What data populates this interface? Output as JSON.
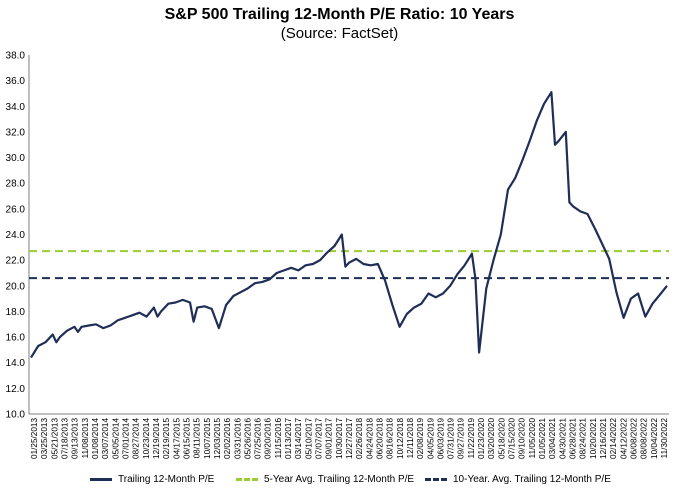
{
  "chart_data": {
    "type": "line",
    "title": "S&P 500 Trailing 12-Month P/E Ratio: 10 Years",
    "subtitle": "(Source: FactSet)",
    "xlabel": "",
    "ylabel": "",
    "ylim": [
      10.0,
      38.0
    ],
    "y_ticks": [
      "10.0",
      "12.0",
      "14.0",
      "16.0",
      "18.0",
      "20.0",
      "22.0",
      "24.0",
      "26.0",
      "28.0",
      "30.0",
      "32.0",
      "34.0",
      "36.0",
      "38.0"
    ],
    "grid": false,
    "legend_position": "bottom",
    "x_tick_labels": [
      "01/25/2013",
      "03/25/2013",
      "05/21/2013",
      "07/18/2013",
      "09/13/2013",
      "11/08/2013",
      "01/08/2014",
      "03/07/2014",
      "05/05/2014",
      "07/01/2014",
      "08/27/2014",
      "10/23/2014",
      "12/19/2014",
      "02/19/2015",
      "04/17/2015",
      "06/15/2015",
      "08/11/2015",
      "10/07/2015",
      "12/03/2015",
      "02/02/2016",
      "03/31/2016",
      "05/26/2016",
      "07/25/2016",
      "09/20/2016",
      "11/15/2016",
      "01/13/2017",
      "03/14/2017",
      "05/10/2017",
      "07/07/2017",
      "09/01/2017",
      "10/30/2017",
      "12/27/2017",
      "02/26/2018",
      "04/24/2018",
      "06/20/2018",
      "08/16/2018",
      "10/12/2018",
      "12/11/2018",
      "02/08/2019",
      "04/05/2019",
      "06/03/2019",
      "07/31/2019",
      "09/27/2019",
      "11/22/2019",
      "01/23/2020",
      "03/20/2020",
      "05/18/2020",
      "07/15/2020",
      "09/10/2020",
      "11/05/2020",
      "01/05/2021",
      "03/04/2021",
      "04/30/2021",
      "06/28/2021",
      "08/24/2021",
      "10/20/2021",
      "12/16/2021",
      "02/14/2022",
      "04/12/2022",
      "06/08/2022",
      "08/08/2022",
      "10/04/2022",
      "11/30/2022"
    ],
    "series": [
      {
        "name": "Trailing 12-Month P/E",
        "style": "solid",
        "color": "#1f2e57",
        "points": [
          [
            0,
            14.4
          ],
          [
            1,
            15.3
          ],
          [
            2,
            15.6
          ],
          [
            3,
            16.2
          ],
          [
            3.5,
            15.6
          ],
          [
            4,
            16.0
          ],
          [
            5,
            16.5
          ],
          [
            6,
            16.8
          ],
          [
            6.5,
            16.4
          ],
          [
            7,
            16.8
          ],
          [
            8,
            16.9
          ],
          [
            9,
            17.0
          ],
          [
            10,
            16.7
          ],
          [
            11,
            16.9
          ],
          [
            12,
            17.3
          ],
          [
            13,
            17.5
          ],
          [
            14,
            17.7
          ],
          [
            15,
            17.9
          ],
          [
            16,
            17.6
          ],
          [
            17,
            18.3
          ],
          [
            17.5,
            17.6
          ],
          [
            18,
            18.0
          ],
          [
            19,
            18.6
          ],
          [
            20,
            18.7
          ],
          [
            21,
            18.9
          ],
          [
            22,
            18.7
          ],
          [
            22.5,
            17.2
          ],
          [
            23,
            18.3
          ],
          [
            24,
            18.4
          ],
          [
            25,
            18.2
          ],
          [
            26,
            16.7
          ],
          [
            27,
            18.5
          ],
          [
            28,
            19.2
          ],
          [
            29,
            19.5
          ],
          [
            30,
            19.8
          ],
          [
            31,
            20.2
          ],
          [
            32,
            20.3
          ],
          [
            33,
            20.5
          ],
          [
            34,
            21.0
          ],
          [
            35,
            21.2
          ],
          [
            36,
            21.4
          ],
          [
            37,
            21.2
          ],
          [
            38,
            21.6
          ],
          [
            39,
            21.7
          ],
          [
            40,
            22.0
          ],
          [
            41,
            22.6
          ],
          [
            42,
            23.1
          ],
          [
            43,
            24.0
          ],
          [
            43.5,
            21.5
          ],
          [
            44,
            21.8
          ],
          [
            45,
            22.1
          ],
          [
            46,
            21.7
          ],
          [
            47,
            21.6
          ],
          [
            48,
            21.7
          ],
          [
            49,
            20.4
          ],
          [
            50,
            18.5
          ],
          [
            51,
            16.8
          ],
          [
            52,
            17.8
          ],
          [
            53,
            18.3
          ],
          [
            54,
            18.6
          ],
          [
            55,
            19.4
          ],
          [
            56,
            19.1
          ],
          [
            57,
            19.4
          ],
          [
            58,
            20.0
          ],
          [
            59,
            20.9
          ],
          [
            60,
            21.6
          ],
          [
            61,
            22.5
          ],
          [
            61.5,
            20.5
          ],
          [
            62,
            14.8
          ],
          [
            63,
            19.8
          ],
          [
            64,
            22.0
          ],
          [
            65,
            24.0
          ],
          [
            66,
            27.5
          ],
          [
            67,
            28.4
          ],
          [
            68,
            29.8
          ],
          [
            69,
            31.3
          ],
          [
            70,
            32.9
          ],
          [
            71,
            34.2
          ],
          [
            72,
            35.1
          ],
          [
            72.5,
            31.0
          ],
          [
            73,
            31.3
          ],
          [
            74,
            32.0
          ],
          [
            74.5,
            26.5
          ],
          [
            75,
            26.2
          ],
          [
            76,
            25.8
          ],
          [
            77,
            25.6
          ],
          [
            78,
            24.5
          ],
          [
            79,
            23.3
          ],
          [
            80,
            22.1
          ],
          [
            81,
            19.5
          ],
          [
            82,
            17.5
          ],
          [
            83,
            19.0
          ],
          [
            84,
            19.4
          ],
          [
            85,
            17.6
          ],
          [
            86,
            18.6
          ],
          [
            87,
            19.3
          ],
          [
            88,
            20.0
          ]
        ]
      },
      {
        "name": "5-Year Avg. Trailing 12-Month P/E",
        "style": "dashed",
        "color": "#9acd32",
        "values": [
          22.7
        ]
      },
      {
        "name": "10-Year. Avg. Trailing 12-Month P/E",
        "style": "dashed",
        "color": "#1f2e57",
        "values": [
          20.6
        ]
      }
    ]
  }
}
